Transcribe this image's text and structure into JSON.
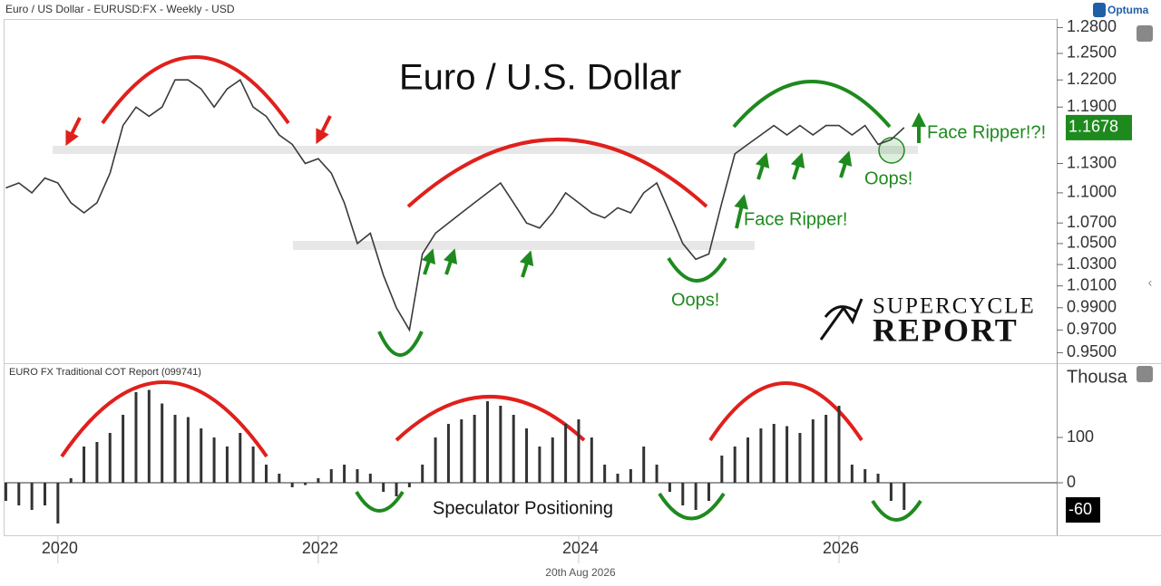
{
  "header": {
    "title": "Euro / US Dollar - EURUSD:FX - Weekly - USD",
    "brand": "Optuma",
    "footer": "20th Aug 2026"
  },
  "logo": {
    "line1": "SUPERCYCLE",
    "line2": "REPORT"
  },
  "chart_data": [
    {
      "type": "line",
      "title": "Euro / U.S. Dollar",
      "color": "#3a3a3a",
      "log": true,
      "x": [
        2019.6,
        2019.7,
        2019.8,
        2019.9,
        2020.0,
        2020.1,
        2020.2,
        2020.3,
        2020.4,
        2020.5,
        2020.6,
        2020.7,
        2020.8,
        2020.9,
        2021.0,
        2021.1,
        2021.2,
        2021.3,
        2021.4,
        2021.5,
        2021.6,
        2021.7,
        2021.8,
        2021.9,
        2022.0,
        2022.1,
        2022.2,
        2022.3,
        2022.4,
        2022.5,
        2022.6,
        2022.7,
        2022.8,
        2022.9,
        2023.0,
        2023.1,
        2023.2,
        2023.3,
        2023.4,
        2023.5,
        2023.6,
        2023.7,
        2023.8,
        2023.9,
        2024.0,
        2024.1,
        2024.2,
        2024.3,
        2024.4,
        2024.5,
        2024.6,
        2024.7,
        2024.8,
        2024.9,
        2025.0,
        2025.1,
        2025.2,
        2025.3,
        2025.4,
        2025.5,
        2025.6,
        2025.7,
        2025.8,
        2025.9,
        2026.0,
        2026.1,
        2026.2,
        2026.3,
        2026.4,
        2026.5
      ],
      "values": [
        1.105,
        1.11,
        1.1,
        1.115,
        1.11,
        1.09,
        1.08,
        1.09,
        1.12,
        1.17,
        1.19,
        1.18,
        1.19,
        1.22,
        1.22,
        1.21,
        1.19,
        1.21,
        1.22,
        1.19,
        1.18,
        1.16,
        1.15,
        1.13,
        1.135,
        1.12,
        1.09,
        1.05,
        1.06,
        1.02,
        0.99,
        0.97,
        1.04,
        1.06,
        1.07,
        1.08,
        1.09,
        1.1,
        1.11,
        1.09,
        1.07,
        1.065,
        1.08,
        1.1,
        1.09,
        1.08,
        1.075,
        1.085,
        1.08,
        1.1,
        1.11,
        1.08,
        1.05,
        1.035,
        1.04,
        1.09,
        1.14,
        1.15,
        1.16,
        1.17,
        1.16,
        1.17,
        1.16,
        1.17,
        1.17,
        1.16,
        1.17,
        1.15,
        1.155,
        1.1678
      ],
      "xlim": [
        2019.59,
        2027.7
      ],
      "ylim": [
        0.9417,
        1.289
      ],
      "yticks": [
        {
          "value": 1.28,
          "label": "1.2800"
        },
        {
          "value": 1.25,
          "label": "1.2500"
        },
        {
          "value": 1.22,
          "label": "1.2200"
        },
        {
          "value": 1.19,
          "label": "1.1900"
        },
        {
          "value": 1.13,
          "label": "1.1300"
        },
        {
          "value": 1.1,
          "label": "1.1000"
        },
        {
          "value": 1.07,
          "label": "1.0700"
        },
        {
          "value": 1.05,
          "label": "1.0500"
        },
        {
          "value": 1.03,
          "label": "1.0300"
        },
        {
          "value": 1.01,
          "label": "1.0100"
        },
        {
          "value": 0.99,
          "label": "0.9900"
        },
        {
          "value": 0.97,
          "label": "0.9700"
        },
        {
          "value": 0.95,
          "label": "0.9500"
        }
      ],
      "annotations": [
        "Face Ripper!?!",
        "Oops!",
        "Face Ripper!",
        "Oops!"
      ]
    },
    {
      "type": "bar",
      "title": "EURO FX Traditional COT Report (099741)",
      "ylabel": "Thousa",
      "color": "#333333",
      "x": [
        2019.6,
        2019.7,
        2019.8,
        2019.9,
        2020.0,
        2020.1,
        2020.2,
        2020.3,
        2020.4,
        2020.5,
        2020.6,
        2020.7,
        2020.8,
        2020.9,
        2021.0,
        2021.1,
        2021.2,
        2021.3,
        2021.4,
        2021.5,
        2021.6,
        2021.7,
        2021.8,
        2021.9,
        2022.0,
        2022.1,
        2022.2,
        2022.3,
        2022.4,
        2022.5,
        2022.6,
        2022.7,
        2022.8,
        2022.9,
        2023.0,
        2023.1,
        2023.2,
        2023.3,
        2023.4,
        2023.5,
        2023.6,
        2023.7,
        2023.8,
        2023.9,
        2024.0,
        2024.1,
        2024.2,
        2024.3,
        2024.4,
        2024.5,
        2024.6,
        2024.7,
        2024.8,
        2024.9,
        2025.0,
        2025.1,
        2025.2,
        2025.3,
        2025.4,
        2025.5,
        2025.6,
        2025.7,
        2025.8,
        2025.9,
        2026.0,
        2026.1,
        2026.2,
        2026.3,
        2026.4,
        2026.5
      ],
      "values": [
        -40,
        -50,
        -60,
        -50,
        -90,
        10,
        80,
        90,
        110,
        150,
        200,
        205,
        175,
        150,
        145,
        120,
        100,
        80,
        110,
        80,
        40,
        20,
        -10,
        -5,
        10,
        30,
        40,
        30,
        20,
        -20,
        -30,
        -10,
        40,
        100,
        130,
        140,
        150,
        180,
        170,
        150,
        120,
        80,
        100,
        130,
        140,
        100,
        40,
        20,
        30,
        80,
        40,
        -20,
        -50,
        -60,
        -40,
        60,
        80,
        100,
        120,
        130,
        125,
        110,
        140,
        150,
        170,
        40,
        30,
        20,
        -40,
        -60
      ],
      "xlim": [
        2019.59,
        2027.7
      ],
      "ylim": [
        -114,
        260
      ],
      "yticks": [
        0,
        100
      ],
      "xticks": [
        2020,
        2022,
        2024,
        2026
      ],
      "annotations": [
        "Speculator Positioning"
      ]
    }
  ]
}
